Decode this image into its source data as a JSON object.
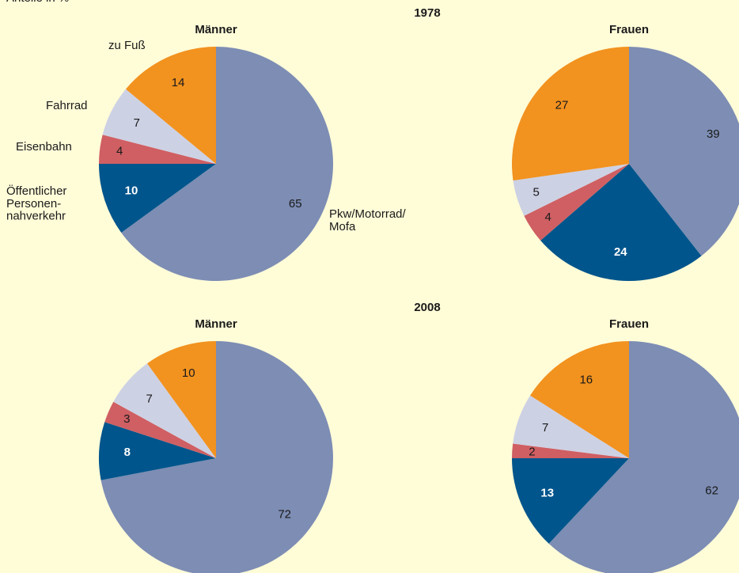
{
  "chart_data": [
    {
      "type": "pie",
      "unit_label": "Anteile in %",
      "section": "1978",
      "title": "Männer",
      "categories": [
        "Pkw/Motorrad/\nMofa",
        "Öffentlicher\nPersonen-\nnahverkehr",
        "Eisenbahn",
        "Fahrrad",
        "zu Fuß"
      ],
      "values": [
        65,
        10,
        4,
        7,
        14
      ],
      "colors": [
        "#7d8db4",
        "#00558c",
        "#cf5f63",
        "#cdd1e4",
        "#f2921f"
      ]
    },
    {
      "type": "pie",
      "title": "Frauen",
      "categories": [
        null,
        null,
        null,
        null,
        null
      ],
      "values": [
        39,
        24,
        4,
        5,
        27
      ],
      "colors": [
        "#7d8db4",
        "#00558c",
        "#cf5f63",
        "#cdd1e4",
        "#f2921f"
      ]
    },
    {
      "type": "pie",
      "section": "2008",
      "title": "Männer",
      "categories": [
        null,
        null,
        null,
        null,
        null
      ],
      "values": [
        72,
        8,
        3,
        7,
        10
      ],
      "colors": [
        "#7d8db4",
        "#00558c",
        "#cf5f63",
        "#cdd1e4",
        "#f2921f"
      ]
    },
    {
      "type": "pie",
      "title": "Frauen",
      "categories": [
        null,
        null,
        null,
        null,
        null
      ],
      "values": [
        62,
        13,
        2,
        7,
        16
      ],
      "colors": [
        "#7d8db4",
        "#00558c",
        "#cf5f63",
        "#cdd1e4",
        "#f2921f"
      ]
    }
  ]
}
